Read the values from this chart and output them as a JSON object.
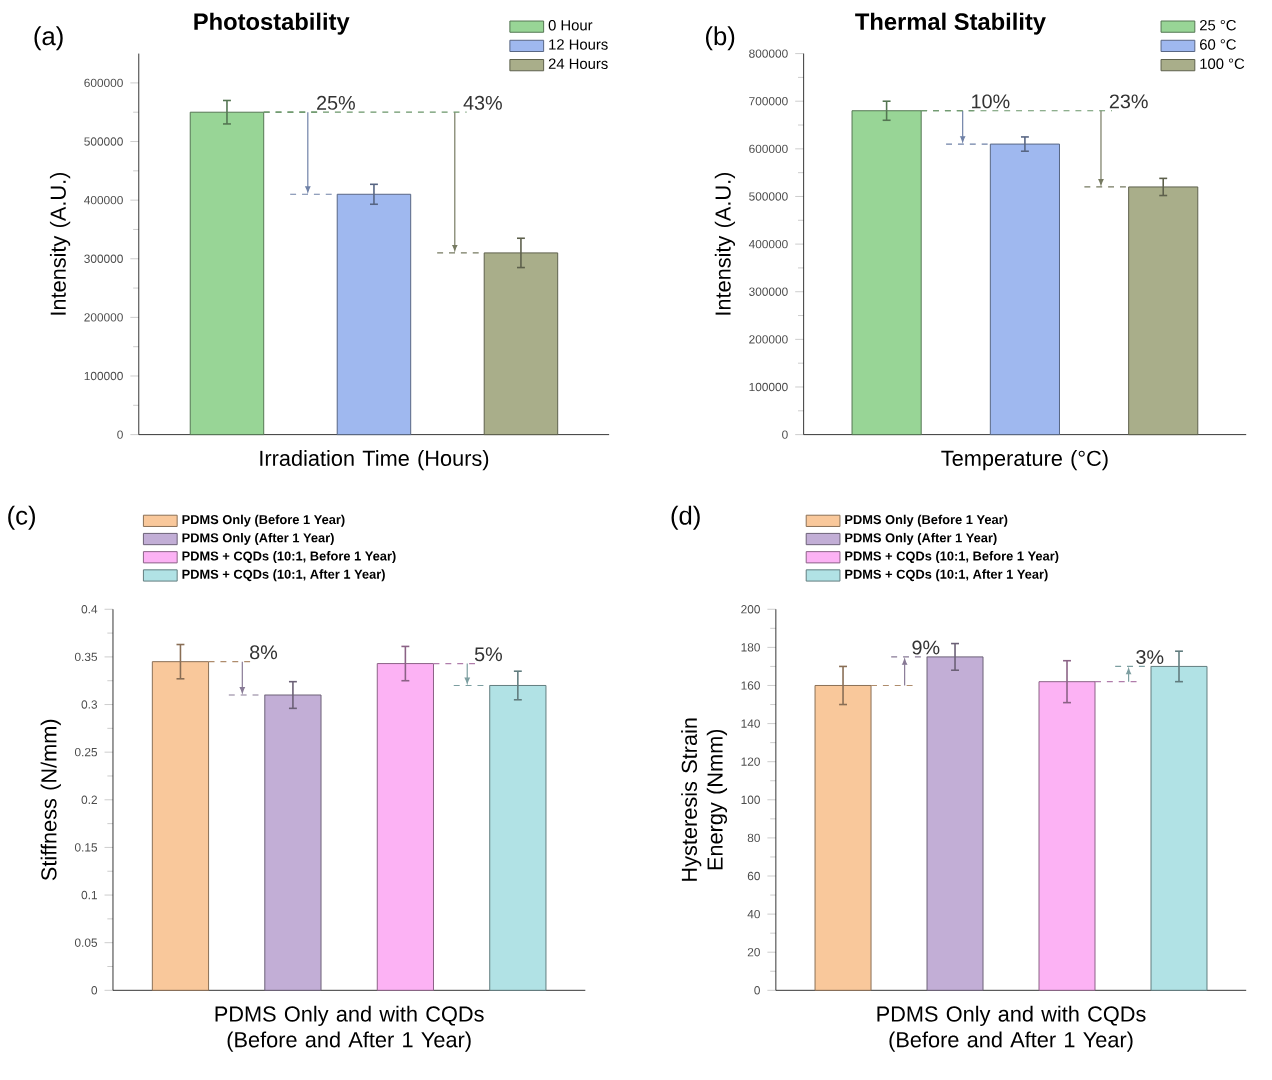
{
  "chart_data": [
    {
      "type": "bar",
      "title": "Photostability",
      "xlabel": "Irradiation Time (Hours)",
      "ylabel": "Intensity (A.U.)",
      "categories": [
        null,
        null,
        null
      ],
      "series": [
        {
          "name": "0 Hour",
          "color": "#98d596",
          "values": [
            550000,
            null,
            null
          ],
          "errors": [
            20000,
            null,
            null
          ]
        },
        {
          "name": "12 Hours",
          "color": "#9fb8ef",
          "values": [
            null,
            410000,
            null
          ],
          "errors": [
            null,
            17000,
            null
          ]
        },
        {
          "name": "24 Hours",
          "color": "#a9ae8a",
          "values": [
            null,
            null,
            310000
          ],
          "errors": [
            null,
            null,
            25000
          ]
        }
      ],
      "ylim": [
        0,
        650000
      ],
      "yticks": [
        0,
        100000,
        200000,
        300000,
        400000,
        500000,
        600000
      ],
      "legend": "top right",
      "annotations": [
        "(a)",
        "25%",
        "43%"
      ]
    },
    {
      "type": "bar",
      "title": "Thermal Stability",
      "xlabel": "Temperature (°C)",
      "ylabel": "Intensity (A.U.)",
      "categories": [
        null,
        null,
        null
      ],
      "series": [
        {
          "name": "25 °C",
          "color": "#98d596",
          "values": [
            680000,
            null,
            null
          ],
          "errors": [
            20000,
            null,
            null
          ]
        },
        {
          "name": "60 °C",
          "color": "#9fb8ef",
          "values": [
            null,
            610000,
            null
          ],
          "errors": [
            null,
            15000,
            null
          ]
        },
        {
          "name": "100 °C",
          "color": "#a9ae8a",
          "values": [
            null,
            null,
            520000
          ],
          "errors": [
            null,
            null,
            18000
          ]
        }
      ],
      "ylim": [
        0,
        800000
      ],
      "yticks": [
        0,
        100000,
        200000,
        300000,
        400000,
        500000,
        600000,
        700000,
        800000
      ],
      "legend": "top right",
      "annotations": [
        "(b)",
        "10%",
        "23%"
      ]
    },
    {
      "type": "bar",
      "xlabel": "PDMS Only and with CQDs (Before and After 1 Year)",
      "ylabel": "Stiffness (N/mm)",
      "categories": [
        null,
        null,
        null,
        null
      ],
      "series": [
        {
          "name": "PDMS Only (Before 1 Year)",
          "color": "#f9c89b",
          "values": [
            0.345,
            null,
            null,
            null
          ],
          "errors": [
            0.018,
            null,
            null,
            null
          ]
        },
        {
          "name": "PDMS Only (After 1 Year)",
          "color": "#c2aed6",
          "values": [
            null,
            0.31,
            null,
            null
          ],
          "errors": [
            null,
            0.014,
            null,
            null
          ]
        },
        {
          "name": "PDMS + CQDs (10:1, Before 1 Year)",
          "color": "#fcb2f4",
          "values": [
            null,
            null,
            0.343,
            null
          ],
          "errors": [
            null,
            null,
            0.018,
            null
          ]
        },
        {
          "name": "PDMS + CQDs (10:1, After 1 Year)",
          "color": "#b1e2e5",
          "values": [
            null,
            null,
            null,
            0.32
          ],
          "errors": [
            null,
            null,
            null,
            0.015
          ]
        }
      ],
      "ylim": [
        0,
        0.4
      ],
      "yticks": [
        0,
        0.05,
        0.1,
        0.15,
        0.2,
        0.25,
        0.3,
        0.35,
        0.4
      ],
      "legend": "top",
      "annotations": [
        "(c)",
        "8%",
        "5%"
      ]
    },
    {
      "type": "bar",
      "xlabel": "PDMS Only and with CQDs (Before and After 1 Year)",
      "ylabel": "Hysteresis Strain Energy (Nmm)",
      "categories": [
        null,
        null,
        null,
        null
      ],
      "series": [
        {
          "name": "PDMS Only (Before 1 Year)",
          "color": "#f9c89b",
          "values": [
            160,
            null,
            null,
            null
          ],
          "errors": [
            10,
            null,
            null,
            null
          ]
        },
        {
          "name": "PDMS Only (After 1 Year)",
          "color": "#c2aed6",
          "values": [
            null,
            175,
            null,
            null
          ],
          "errors": [
            null,
            7,
            null,
            null
          ]
        },
        {
          "name": "PDMS + CQDs (10:1, Before 1 Year)",
          "color": "#fcb2f4",
          "values": [
            null,
            null,
            162,
            null
          ],
          "errors": [
            null,
            null,
            11,
            null
          ]
        },
        {
          "name": "PDMS + CQDs (10:1, After 1 Year)",
          "color": "#b1e2e5",
          "values": [
            null,
            null,
            null,
            170
          ],
          "errors": [
            null,
            null,
            null,
            8
          ]
        }
      ],
      "ylim": [
        0,
        200
      ],
      "yticks": [
        0,
        20,
        40,
        60,
        80,
        100,
        120,
        140,
        160,
        180,
        200
      ],
      "legend": "top",
      "annotations": [
        "(d)",
        "9%",
        "3%"
      ]
    }
  ]
}
